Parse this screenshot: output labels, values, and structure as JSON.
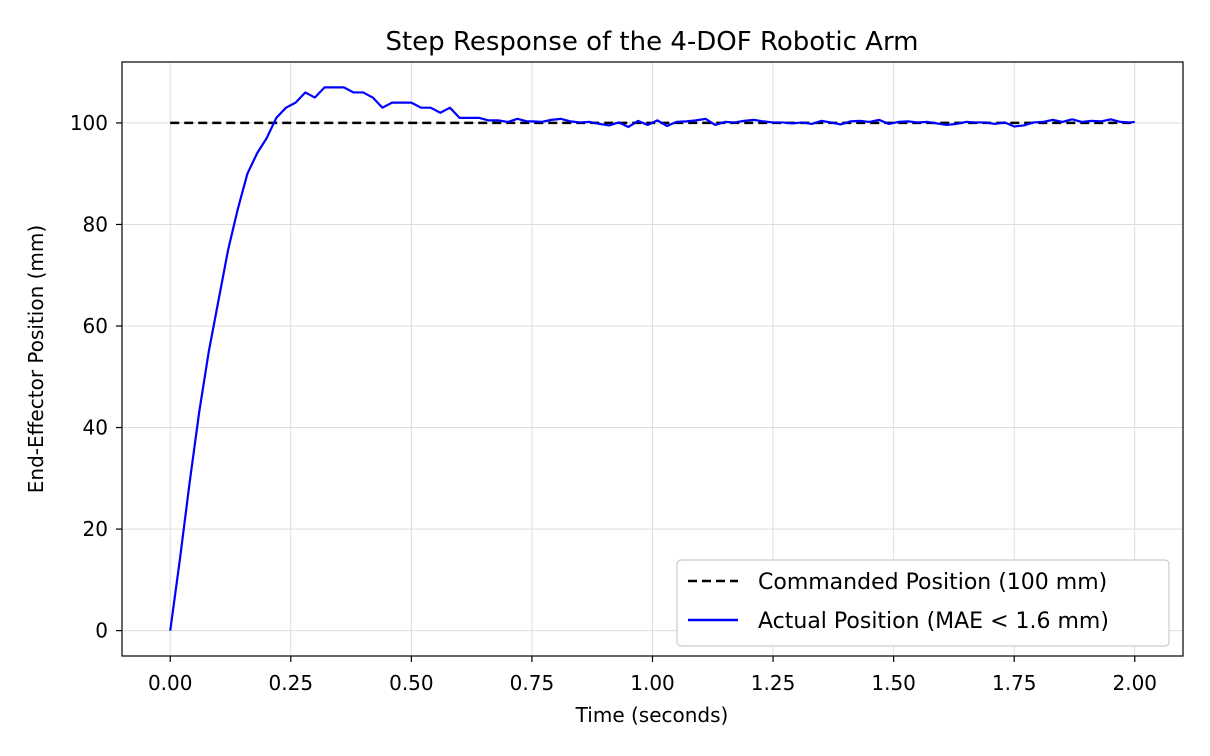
{
  "chart_data": {
    "type": "line",
    "title": "Step Response of the 4-DOF Robotic Arm",
    "xlabel": "Time (seconds)",
    "ylabel": "End-Effector Position (mm)",
    "xlim": [
      -0.1,
      2.1
    ],
    "ylim": [
      -5,
      112
    ],
    "x_ticks": [
      0.0,
      0.25,
      0.5,
      0.75,
      1.0,
      1.25,
      1.5,
      1.75,
      2.0
    ],
    "x_tick_labels": [
      "0.00",
      "0.25",
      "0.50",
      "0.75",
      "1.00",
      "1.25",
      "1.50",
      "1.75",
      "2.00"
    ],
    "y_ticks": [
      0,
      20,
      40,
      60,
      80,
      100
    ],
    "y_tick_labels": [
      "0",
      "20",
      "40",
      "60",
      "80",
      "100"
    ],
    "grid": true,
    "legend_position": "bottom-right",
    "series": [
      {
        "name": "Commanded Position (100 mm)",
        "color": "#000000",
        "style": "dashed",
        "x": [
          0.0,
          2.0
        ],
        "y": [
          100,
          100
        ]
      },
      {
        "name": "Actual Position (MAE < 1.6 mm)",
        "color": "#0000ff",
        "style": "solid",
        "x": [
          0.0,
          0.02,
          0.04,
          0.06,
          0.08,
          0.1,
          0.12,
          0.14,
          0.16,
          0.18,
          0.2,
          0.22,
          0.24,
          0.26,
          0.28,
          0.3,
          0.32,
          0.34,
          0.36,
          0.38,
          0.4,
          0.42,
          0.44,
          0.46,
          0.48,
          0.5,
          0.52,
          0.54,
          0.56,
          0.58,
          0.6,
          0.62,
          0.64,
          0.66,
          0.68,
          0.7,
          0.72,
          0.74,
          0.75,
          0.77,
          0.79,
          0.81,
          0.83,
          0.85,
          0.87,
          0.89,
          0.91,
          0.93,
          0.95,
          0.97,
          0.99,
          1.01,
          1.03,
          1.05,
          1.07,
          1.09,
          1.11,
          1.13,
          1.15,
          1.17,
          1.19,
          1.21,
          1.23,
          1.25,
          1.27,
          1.29,
          1.31,
          1.33,
          1.35,
          1.37,
          1.39,
          1.41,
          1.43,
          1.45,
          1.47,
          1.49,
          1.51,
          1.53,
          1.55,
          1.57,
          1.59,
          1.61,
          1.63,
          1.65,
          1.67,
          1.69,
          1.71,
          1.73,
          1.75,
          1.77,
          1.79,
          1.81,
          1.83,
          1.85,
          1.87,
          1.89,
          1.91,
          1.93,
          1.95,
          1.97,
          1.99,
          2.0
        ],
        "y": [
          0,
          14,
          29,
          43,
          55,
          65,
          75,
          83,
          90,
          94,
          97,
          101,
          103,
          104,
          106,
          105,
          107,
          107,
          107,
          106,
          106,
          105,
          103,
          104,
          104,
          104,
          103,
          103,
          102,
          103,
          101,
          101,
          101,
          100.5,
          100.5,
          100.2,
          100.8,
          100.3,
          100.3,
          100.2,
          100.6,
          100.8,
          100.3,
          100.1,
          100.2,
          99.8,
          99.5,
          100.1,
          99.2,
          100.4,
          99.6,
          100.5,
          99.4,
          100.2,
          100.3,
          100.5,
          100.8,
          99.6,
          100.2,
          100.1,
          100.4,
          100.6,
          100.3,
          100.1,
          100.1,
          99.9,
          100.1,
          99.8,
          100.4,
          100.1,
          99.7,
          100.3,
          100.4,
          100.2,
          100.6,
          99.8,
          100.2,
          100.3,
          100.1,
          100.2,
          99.9,
          99.6,
          99.8,
          100.2,
          100.1,
          100.1,
          99.8,
          100.1,
          99.3,
          99.5,
          100.1,
          100.2,
          100.6,
          100.2,
          100.7,
          100.2,
          100.4,
          100.3,
          100.7,
          100.2,
          100.1,
          100.2
        ]
      }
    ]
  }
}
